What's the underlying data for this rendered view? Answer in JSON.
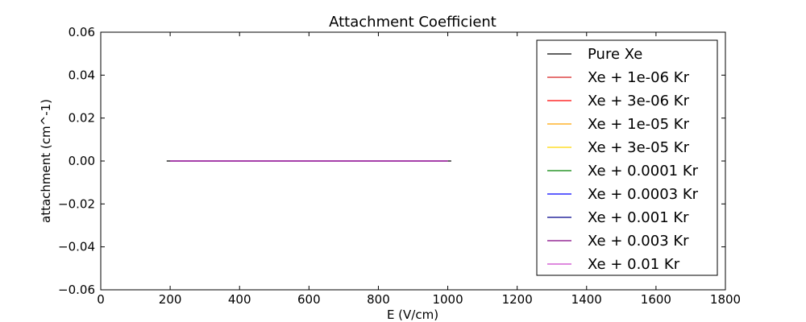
{
  "chart_data": {
    "type": "line",
    "title": "Attachment Coefficient",
    "xlabel": "E (V/cm)",
    "ylabel": "attachment (cm^-1)",
    "xlim": [
      0,
      1800
    ],
    "ylim": [
      -0.06,
      0.06
    ],
    "xticks": [
      0,
      200,
      400,
      600,
      800,
      1000,
      1200,
      1400,
      1600,
      1800
    ],
    "xtick_labels": [
      "0",
      "200",
      "400",
      "600",
      "800",
      "1000",
      "1200",
      "1400",
      "1600",
      "1800"
    ],
    "yticks": [
      -0.06,
      -0.04,
      -0.02,
      0.0,
      0.02,
      0.04,
      0.06
    ],
    "ytick_labels": [
      "−0.06",
      "−0.04",
      "−0.02",
      "0.00",
      "0.02",
      "0.04",
      "0.06"
    ],
    "grid": false,
    "legend_position": "right",
    "series": [
      {
        "name": "Pure Xe",
        "color": "#000000",
        "x": [
          190,
          1010
        ],
        "y": [
          0,
          0
        ]
      },
      {
        "name": "Xe + 1e-06 Kr",
        "color": "#d62020",
        "x": [
          200,
          1000
        ],
        "y": [
          0,
          0
        ]
      },
      {
        "name": "Xe + 3e-06 Kr",
        "color": "#ff0000",
        "x": [
          200,
          1000
        ],
        "y": [
          0,
          0
        ]
      },
      {
        "name": "Xe + 1e-05 Kr",
        "color": "#ffa500",
        "x": [
          200,
          1000
        ],
        "y": [
          0,
          0
        ]
      },
      {
        "name": "Xe + 3e-05 Kr",
        "color": "#ffd700",
        "x": [
          200,
          1000
        ],
        "y": [
          0,
          0
        ]
      },
      {
        "name": "Xe + 0.0001 Kr",
        "color": "#008000",
        "x": [
          200,
          1000
        ],
        "y": [
          0,
          0
        ]
      },
      {
        "name": "Xe + 0.0003 Kr",
        "color": "#0000ff",
        "x": [
          200,
          1000
        ],
        "y": [
          0,
          0
        ]
      },
      {
        "name": "Xe + 0.001 Kr",
        "color": "#00008b",
        "x": [
          200,
          1000
        ],
        "y": [
          0,
          0
        ]
      },
      {
        "name": "Xe + 0.003 Kr",
        "color": "#800080",
        "x": [
          200,
          1000
        ],
        "y": [
          0,
          0
        ]
      },
      {
        "name": "Xe + 0.01 Kr",
        "color": "#cc44cc",
        "x": [
          200,
          1000
        ],
        "y": [
          0,
          0
        ]
      }
    ]
  }
}
